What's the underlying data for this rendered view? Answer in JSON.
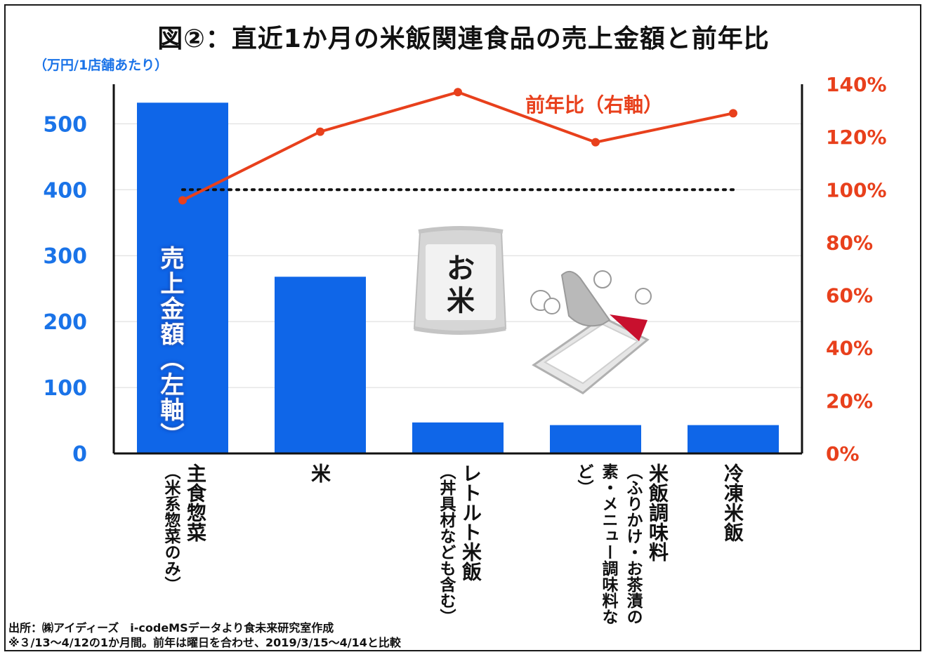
{
  "title": "図②：直近1か月の米飯関連食品の売上金額と前年比",
  "unit_label": "（万円/1店舗あたり）",
  "bar_series_label": "売上金額（左軸）",
  "line_series_label": "前年比（右軸）",
  "source_lines": [
    "出所：㈱アイディーズ　i-codeMSデータより食未来研究室作成",
    "※３/13～4/12の1か月間。前年は曜日を合わせ、2019/3/15～4/14と比較"
  ],
  "colors": {
    "bar": "#0f66e8",
    "line": "#e8401c",
    "left_axis_text": "#1a73e8",
    "reference": "#111111"
  },
  "chart_data": {
    "type": "bar",
    "categories": [
      {
        "main": "主食惣菜",
        "sub": "（米系惣菜のみ）"
      },
      {
        "main": "米",
        "sub": ""
      },
      {
        "main": "レトルト米飯",
        "sub": "（丼具材なども含む）"
      },
      {
        "main": "米飯調味料",
        "sub": "（ふりかけ・お茶漬の素・メニュー調味料など）"
      },
      {
        "main": "冷凍米飯",
        "sub": ""
      }
    ],
    "series": [
      {
        "name": "売上金額",
        "axis": "left",
        "kind": "bar",
        "values": [
          532,
          268,
          47,
          43,
          43
        ]
      },
      {
        "name": "前年比",
        "axis": "right",
        "kind": "line",
        "values": [
          0.96,
          1.22,
          1.37,
          1.18,
          1.29
        ]
      }
    ],
    "reference_line": {
      "axis": "right",
      "value": 1.0,
      "style": "dotted"
    },
    "left_axis": {
      "ylim": [
        0,
        560
      ],
      "ticks": [
        "0",
        "100",
        "200",
        "300",
        "400",
        "500"
      ]
    },
    "right_axis": {
      "ylim": [
        0,
        1.4
      ],
      "ticks": [
        "0%",
        "20%",
        "40%",
        "60%",
        "80%",
        "100%",
        "120%",
        "140%"
      ]
    },
    "grid": true,
    "legend": "none"
  }
}
